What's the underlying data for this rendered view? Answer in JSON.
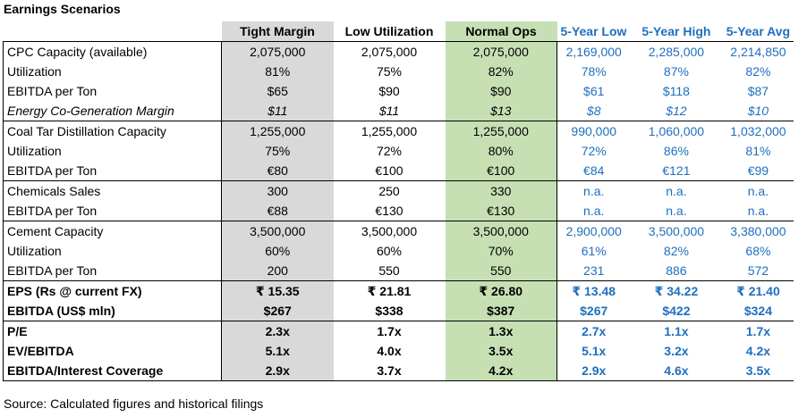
{
  "title": "Earnings Scenarios",
  "columns": [
    "Tight Margin",
    "Low Utilization",
    "Normal Ops",
    "5-Year Low",
    "5-Year High",
    "5-Year Avg"
  ],
  "rows": [
    {
      "label": "CPC Capacity (available)",
      "values": [
        "2,075,000",
        "2,075,000",
        "2,075,000",
        "2,169,000",
        "2,285,000",
        "2,214,850"
      ]
    },
    {
      "label": "Utilization",
      "values": [
        "81%",
        "75%",
        "82%",
        "78%",
        "87%",
        "82%"
      ]
    },
    {
      "label": "EBITDA per Ton",
      "values": [
        "$65",
        "$90",
        "$90",
        "$61",
        "$118",
        "$87"
      ]
    },
    {
      "label": "Energy Co-Generation Margin",
      "values": [
        "$11",
        "$11",
        "$13",
        "$8",
        "$12",
        "$10"
      ]
    },
    {
      "label": "Coal Tar Distillation Capacity",
      "values": [
        "1,255,000",
        "1,255,000",
        "1,255,000",
        "990,000",
        "1,060,000",
        "1,032,000"
      ]
    },
    {
      "label": "Utilization",
      "values": [
        "75%",
        "72%",
        "80%",
        "72%",
        "86%",
        "81%"
      ]
    },
    {
      "label": "EBITDA per Ton",
      "values": [
        "€80",
        "€100",
        "€100",
        "€84",
        "€121",
        "€99"
      ]
    },
    {
      "label": "Chemicals Sales",
      "values": [
        "300",
        "250",
        "330",
        "n.a.",
        "n.a.",
        "n.a."
      ]
    },
    {
      "label": "EBITDA per Ton",
      "values": [
        "€88",
        "€130",
        "€130",
        "n.a.",
        "n.a.",
        "n.a."
      ]
    },
    {
      "label": "Cement Capacity",
      "values": [
        "3,500,000",
        "3,500,000",
        "3,500,000",
        "2,900,000",
        "3,500,000",
        "3,380,000"
      ]
    },
    {
      "label": "Utilization",
      "values": [
        "60%",
        "60%",
        "70%",
        "61%",
        "82%",
        "68%"
      ]
    },
    {
      "label": "EBITDA per Ton",
      "values": [
        "200",
        "550",
        "550",
        "231",
        "886",
        "572"
      ]
    },
    {
      "label": "EPS (Rs @ current FX)",
      "values": [
        "₹ 15.35",
        "₹ 21.81",
        "₹ 26.80",
        "₹ 13.48",
        "₹ 34.22",
        "₹ 21.40"
      ]
    },
    {
      "label": "EBITDA (US$ mln)",
      "values": [
        "$267",
        "$338",
        "$387",
        "$267",
        "$422",
        "$324"
      ]
    },
    {
      "label": "P/E",
      "values": [
        "2.3x",
        "1.7x",
        "1.3x",
        "2.7x",
        "1.1x",
        "1.7x"
      ]
    },
    {
      "label": "EV/EBITDA",
      "values": [
        "5.1x",
        "4.0x",
        "3.5x",
        "5.1x",
        "3.2x",
        "4.2x"
      ]
    },
    {
      "label": "EBITDA/Interest Coverage",
      "values": [
        "2.9x",
        "3.7x",
        "4.2x",
        "2.9x",
        "4.6x",
        "3.5x"
      ]
    }
  ],
  "source": "Source: Calculated figures and historical filings",
  "colors": {
    "gray_column": "#d9d9d9",
    "green_column": "#c6e0b4",
    "historical_text": "#1f6fbf"
  }
}
